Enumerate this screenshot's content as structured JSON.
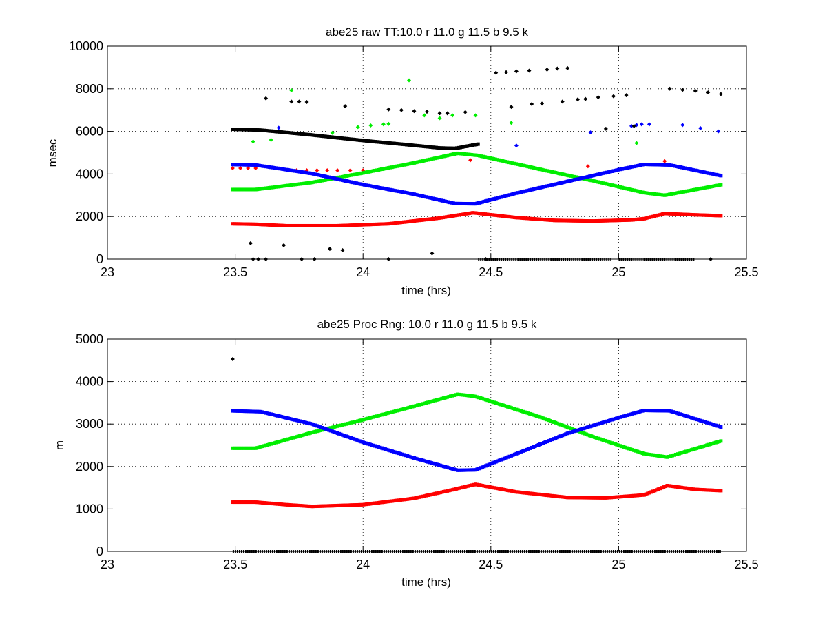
{
  "chart_data": [
    {
      "type": "scatter",
      "title": "abe25 raw TT:10.0 r  11.0 g  11.5 b  9.5 k",
      "xlabel": "time (hrs)",
      "ylabel": "msec",
      "xlim": [
        23,
        25.5
      ],
      "ylim": [
        0,
        10000
      ],
      "xticks": [
        "23",
        "23.5",
        "24",
        "24.5",
        "25",
        "25.5"
      ],
      "yticks": [
        "0",
        "2000",
        "4000",
        "6000",
        "8000",
        "10000"
      ],
      "grid": true,
      "series": [
        {
          "color": "#ff0000",
          "path": [
            [
              23.49,
              1660
            ],
            [
              23.58,
              1640
            ],
            [
              23.7,
              1570
            ],
            [
              23.9,
              1570
            ],
            [
              24.1,
              1660
            ],
            [
              24.3,
              1930
            ],
            [
              24.43,
              2180
            ],
            [
              24.6,
              1950
            ],
            [
              24.75,
              1820
            ],
            [
              24.9,
              1790
            ],
            [
              25.05,
              1840
            ],
            [
              25.1,
              1900
            ],
            [
              25.18,
              2140
            ],
            [
              25.3,
              2080
            ],
            [
              25.4,
              2040
            ]
          ],
          "scatter": [
            [
              23.49,
              4270
            ],
            [
              23.52,
              4270
            ],
            [
              23.55,
              4270
            ],
            [
              23.58,
              4270
            ],
            [
              23.74,
              4170
            ],
            [
              23.78,
              4170
            ],
            [
              23.82,
              4170
            ],
            [
              23.86,
              4170
            ],
            [
              23.9,
              4170
            ],
            [
              23.95,
              4170
            ],
            [
              24.0,
              4170
            ],
            [
              24.42,
              4650
            ],
            [
              24.88,
              4360
            ],
            [
              25.18,
              4600
            ]
          ]
        },
        {
          "color": "#00ee00",
          "path": [
            [
              23.49,
              3270
            ],
            [
              23.58,
              3270
            ],
            [
              23.8,
              3600
            ],
            [
              24.0,
              4050
            ],
            [
              24.2,
              4520
            ],
            [
              24.37,
              4970
            ],
            [
              24.45,
              4870
            ],
            [
              24.7,
              4200
            ],
            [
              24.9,
              3680
            ],
            [
              25.1,
              3120
            ],
            [
              25.18,
              3000
            ],
            [
              25.4,
              3490
            ]
          ],
          "scatter": [
            [
              23.57,
              5520
            ],
            [
              23.64,
              5600
            ],
            [
              23.72,
              7930
            ],
            [
              23.88,
              5930
            ],
            [
              23.98,
              6200
            ],
            [
              24.03,
              6280
            ],
            [
              24.08,
              6330
            ],
            [
              24.1,
              6350
            ],
            [
              24.18,
              8400
            ],
            [
              24.24,
              6750
            ],
            [
              24.3,
              6620
            ],
            [
              24.35,
              6750
            ],
            [
              24.44,
              6750
            ],
            [
              24.58,
              6400
            ],
            [
              25.07,
              5450
            ]
          ]
        },
        {
          "color": "#0000ff",
          "path": [
            [
              23.49,
              4440
            ],
            [
              23.58,
              4420
            ],
            [
              23.8,
              4020
            ],
            [
              24.0,
              3500
            ],
            [
              24.2,
              3050
            ],
            [
              24.36,
              2610
            ],
            [
              24.44,
              2600
            ],
            [
              24.6,
              3100
            ],
            [
              24.8,
              3650
            ],
            [
              25.0,
              4200
            ],
            [
              25.1,
              4450
            ],
            [
              25.2,
              4420
            ],
            [
              25.4,
              3920
            ]
          ],
          "scatter": [
            [
              23.67,
              6170
            ],
            [
              24.6,
              5330
            ],
            [
              24.89,
              5950
            ],
            [
              25.05,
              6250
            ],
            [
              25.07,
              6300
            ],
            [
              25.09,
              6330
            ],
            [
              25.12,
              6330
            ],
            [
              25.25,
              6300
            ],
            [
              25.32,
              6150
            ],
            [
              25.39,
              6000
            ]
          ]
        },
        {
          "color": "#000000",
          "path": [
            [
              23.49,
              6100
            ],
            [
              23.6,
              6060
            ],
            [
              23.8,
              5830
            ],
            [
              24.0,
              5570
            ],
            [
              24.15,
              5400
            ],
            [
              24.3,
              5220
            ],
            [
              24.36,
              5200
            ],
            [
              24.45,
              5400
            ]
          ],
          "scatter": [
            [
              23.62,
              7550
            ],
            [
              23.72,
              7400
            ],
            [
              23.75,
              7400
            ],
            [
              23.78,
              7380
            ],
            [
              23.93,
              7180
            ],
            [
              24.1,
              7030
            ],
            [
              24.15,
              7000
            ],
            [
              24.2,
              6950
            ],
            [
              24.25,
              6920
            ],
            [
              24.3,
              6850
            ],
            [
              24.33,
              6850
            ],
            [
              24.4,
              6900
            ],
            [
              24.52,
              8750
            ],
            [
              24.56,
              8780
            ],
            [
              24.6,
              8820
            ],
            [
              24.65,
              8850
            ],
            [
              24.72,
              8900
            ],
            [
              24.76,
              8950
            ],
            [
              24.8,
              8970
            ],
            [
              24.58,
              7150
            ],
            [
              24.66,
              7280
            ],
            [
              24.7,
              7300
            ],
            [
              24.78,
              7400
            ],
            [
              24.84,
              7500
            ],
            [
              24.87,
              7520
            ],
            [
              24.92,
              7600
            ],
            [
              24.98,
              7650
            ],
            [
              25.03,
              7700
            ],
            [
              24.95,
              6120
            ],
            [
              25.06,
              6250
            ],
            [
              25.2,
              8000
            ],
            [
              25.25,
              7950
            ],
            [
              25.3,
              7900
            ],
            [
              25.35,
              7830
            ],
            [
              25.4,
              7750
            ],
            [
              23.56,
              750
            ],
            [
              23.69,
              650
            ],
            [
              23.87,
              480
            ],
            [
              23.92,
              420
            ],
            [
              24.27,
              270
            ],
            [
              23.57,
              0
            ],
            [
              23.59,
              0
            ],
            [
              23.62,
              0
            ],
            [
              23.76,
              0
            ],
            [
              23.81,
              0
            ],
            [
              24.1,
              0
            ],
            [
              24.48,
              0
            ],
            [
              25.36,
              0
            ]
          ],
          "baseline": [
            [
              24.45,
              24.97
            ],
            [
              25.0,
              25.3
            ]
          ]
        }
      ]
    },
    {
      "type": "scatter",
      "title": "abe25 Proc Rng: 10.0 r  11.0 g  11.5 b  9.5  k",
      "xlabel": "time (hrs)",
      "ylabel": "m",
      "xlim": [
        23,
        25.5
      ],
      "ylim": [
        0,
        5000
      ],
      "xticks": [
        "23",
        "23.5",
        "24",
        "24.5",
        "25",
        "25.5"
      ],
      "yticks": [
        "0",
        "1000",
        "2000",
        "3000",
        "4000",
        "5000"
      ],
      "grid": true,
      "series": [
        {
          "color": "#ff0000",
          "path": [
            [
              23.49,
              1160
            ],
            [
              23.58,
              1160
            ],
            [
              23.7,
              1100
            ],
            [
              23.8,
              1060
            ],
            [
              24.0,
              1100
            ],
            [
              24.2,
              1250
            ],
            [
              24.35,
              1450
            ],
            [
              24.44,
              1580
            ],
            [
              24.6,
              1400
            ],
            [
              24.8,
              1270
            ],
            [
              24.95,
              1260
            ],
            [
              25.1,
              1330
            ],
            [
              25.19,
              1550
            ],
            [
              25.3,
              1460
            ],
            [
              25.4,
              1430
            ]
          ],
          "scatter": []
        },
        {
          "color": "#00ee00",
          "path": [
            [
              23.49,
              2430
            ],
            [
              23.58,
              2430
            ],
            [
              23.8,
              2800
            ],
            [
              24.0,
              3100
            ],
            [
              24.2,
              3420
            ],
            [
              24.37,
              3700
            ],
            [
              24.44,
              3650
            ],
            [
              24.7,
              3150
            ],
            [
              24.9,
              2700
            ],
            [
              25.1,
              2300
            ],
            [
              25.19,
              2220
            ],
            [
              25.4,
              2600
            ]
          ],
          "scatter": []
        },
        {
          "color": "#0000ff",
          "path": [
            [
              23.49,
              3310
            ],
            [
              23.6,
              3290
            ],
            [
              23.8,
              3000
            ],
            [
              24.0,
              2570
            ],
            [
              24.2,
              2200
            ],
            [
              24.37,
              1910
            ],
            [
              24.44,
              1920
            ],
            [
              24.6,
              2300
            ],
            [
              24.8,
              2780
            ],
            [
              25.0,
              3150
            ],
            [
              25.1,
              3320
            ],
            [
              25.2,
              3310
            ],
            [
              25.4,
              2930
            ]
          ],
          "scatter": []
        },
        {
          "color": "#000000",
          "path": [],
          "scatter": [
            [
              23.49,
              4530
            ]
          ],
          "baseline": [
            [
              23.49,
              25.4
            ]
          ]
        }
      ]
    }
  ]
}
